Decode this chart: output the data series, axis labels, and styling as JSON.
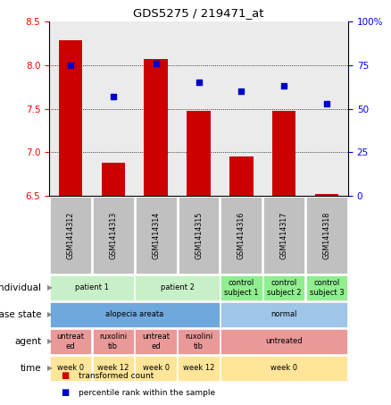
{
  "title": "GDS5275 / 219471_at",
  "samples": [
    "GSM1414312",
    "GSM1414313",
    "GSM1414314",
    "GSM1414315",
    "GSM1414316",
    "GSM1414317",
    "GSM1414318"
  ],
  "transformed_counts": [
    8.28,
    6.88,
    8.07,
    7.47,
    6.95,
    7.47,
    6.52
  ],
  "percentile_ranks": [
    75,
    57,
    76,
    65,
    60,
    63,
    53
  ],
  "ylim_left": [
    6.5,
    8.5
  ],
  "ylim_right": [
    0,
    100
  ],
  "yticks_left": [
    6.5,
    7.0,
    7.5,
    8.0,
    8.5
  ],
  "yticks_right": [
    0,
    25,
    50,
    75,
    100
  ],
  "ytick_right_labels": [
    "0",
    "25",
    "50",
    "75",
    "100%"
  ],
  "bar_color": "#cc0000",
  "dot_color": "#0000cc",
  "bar_bottom": 6.5,
  "rows": {
    "individual": {
      "cells": [
        {
          "text": "patient 1",
          "span": [
            0,
            1
          ],
          "color": "#c8f0c8"
        },
        {
          "text": "patient 2",
          "span": [
            2,
            3
          ],
          "color": "#c8f0c8"
        },
        {
          "text": "control\nsubject 1",
          "span": [
            4,
            4
          ],
          "color": "#90ee90"
        },
        {
          "text": "control\nsubject 2",
          "span": [
            5,
            5
          ],
          "color": "#90ee90"
        },
        {
          "text": "control\nsubject 3",
          "span": [
            6,
            6
          ],
          "color": "#90ee90"
        }
      ]
    },
    "disease_state": {
      "cells": [
        {
          "text": "alopecia areata",
          "span": [
            0,
            3
          ],
          "color": "#6fa8dc"
        },
        {
          "text": "normal",
          "span": [
            4,
            6
          ],
          "color": "#9fc5e8"
        }
      ]
    },
    "agent": {
      "cells": [
        {
          "text": "untreat\ned",
          "span": [
            0,
            0
          ],
          "color": "#ea9999"
        },
        {
          "text": "ruxolini\ntib",
          "span": [
            1,
            1
          ],
          "color": "#ea9999"
        },
        {
          "text": "untreat\ned",
          "span": [
            2,
            2
          ],
          "color": "#ea9999"
        },
        {
          "text": "ruxolini\ntib",
          "span": [
            3,
            3
          ],
          "color": "#ea9999"
        },
        {
          "text": "untreated",
          "span": [
            4,
            6
          ],
          "color": "#ea9999"
        }
      ]
    },
    "time": {
      "cells": [
        {
          "text": "week 0",
          "span": [
            0,
            0
          ],
          "color": "#ffe599"
        },
        {
          "text": "week 12",
          "span": [
            1,
            1
          ],
          "color": "#ffe599"
        },
        {
          "text": "week 0",
          "span": [
            2,
            2
          ],
          "color": "#ffe599"
        },
        {
          "text": "week 12",
          "span": [
            3,
            3
          ],
          "color": "#ffe599"
        },
        {
          "text": "week 0",
          "span": [
            4,
            6
          ],
          "color": "#ffe599"
        }
      ]
    }
  },
  "row_order": [
    "individual",
    "disease_state",
    "agent",
    "time"
  ],
  "row_labels": [
    "individual",
    "disease state",
    "agent",
    "time"
  ],
  "legend": [
    {
      "color": "#cc0000",
      "label": "transformed count"
    },
    {
      "color": "#0000cc",
      "label": "percentile rank within the sample"
    }
  ],
  "grid_yticks": [
    7.0,
    7.5,
    8.0
  ],
  "sample_bg": "#c0c0c0",
  "plot_bg_color": "#ebebeb"
}
